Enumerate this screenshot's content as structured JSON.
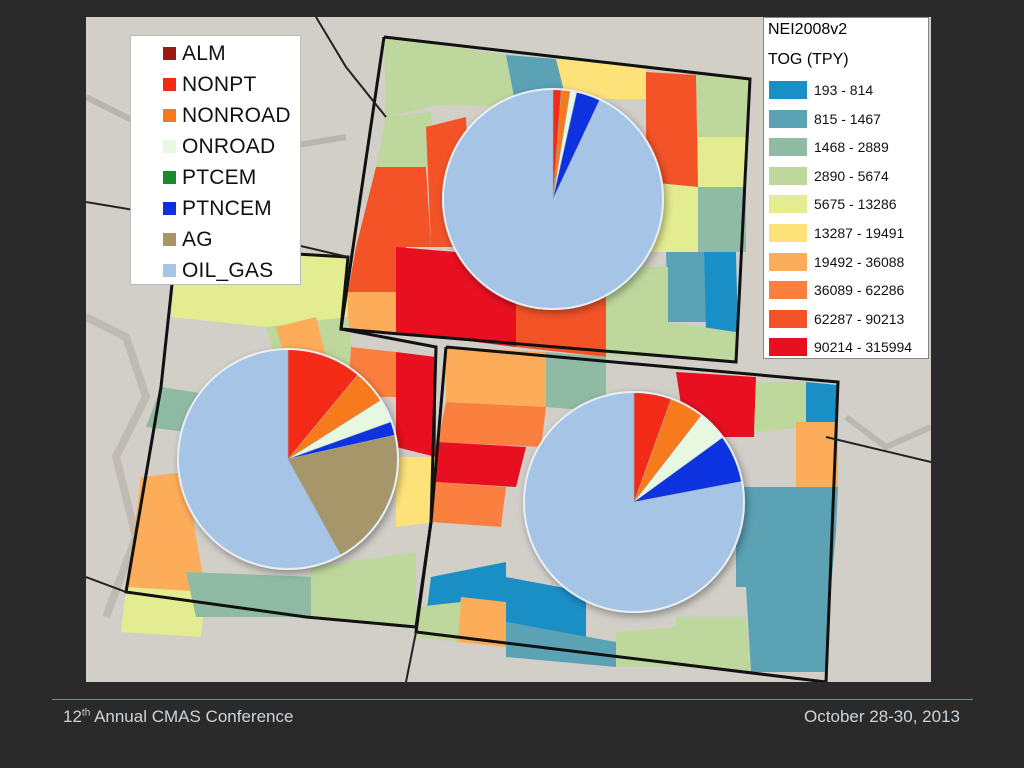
{
  "map": {
    "title": "NEI2008v2",
    "subtitle": "TOG (TPY)",
    "classes": [
      {
        "label": "193 - 814",
        "color": "#1a8fc6"
      },
      {
        "label": "815 - 1467",
        "color": "#5aa2b4"
      },
      {
        "label": "1468 - 2889",
        "color": "#8fbba4"
      },
      {
        "label": "2890 - 5674",
        "color": "#bed79c"
      },
      {
        "label": "5675 - 13286",
        "color": "#e3ec90"
      },
      {
        "label": "13287 - 19491",
        "color": "#fde27a"
      },
      {
        "label": "19492 - 36088",
        "color": "#fdad5a"
      },
      {
        "label": "36089 - 62286",
        "color": "#fb8040"
      },
      {
        "label": "62287 - 90213",
        "color": "#f45328"
      },
      {
        "label": "90214 - 315994",
        "color": "#e81020"
      }
    ],
    "sources": [
      {
        "label": "ALM",
        "color": "#9b1a14"
      },
      {
        "label": "NONPT",
        "color": "#f32a12"
      },
      {
        "label": "NONROAD",
        "color": "#f77a1a"
      },
      {
        "label": "ONROAD",
        "color": "#e6f9e0"
      },
      {
        "label": "PTCEM",
        "color": "#1a8a2a"
      },
      {
        "label": "PTNCEM",
        "color": "#1030e0"
      },
      {
        "label": "AG",
        "color": "#a6966a"
      },
      {
        "label": "OIL_GAS",
        "color": "#a6c4e6"
      }
    ],
    "pies": [
      {
        "region": "upper",
        "shares": {
          "ALM": 0.0,
          "NONPT": 0.012,
          "NONROAD": 0.013,
          "ONROAD": 0.01,
          "PTCEM": 0.0,
          "PTNCEM": 0.035,
          "AG": 0.0,
          "OIL_GAS": 0.93
        }
      },
      {
        "region": "lower-left",
        "shares": {
          "ALM": 0.0,
          "NONPT": 0.11,
          "NONROAD": 0.05,
          "ONROAD": 0.035,
          "PTCEM": 0.0,
          "PTNCEM": 0.02,
          "AG": 0.205,
          "OIL_GAS": 0.58
        }
      },
      {
        "region": "lower-right",
        "shares": {
          "ALM": 0.0,
          "NONPT": 0.055,
          "NONROAD": 0.05,
          "ONROAD": 0.045,
          "PTCEM": 0.0,
          "PTNCEM": 0.07,
          "AG": 0.0,
          "OIL_GAS": 0.78
        }
      }
    ]
  },
  "footer": {
    "conference_number": "12",
    "conference_suffix": "th",
    "conference_name": "Annual CMAS Conference",
    "dates": "October 28-30, 2013"
  }
}
